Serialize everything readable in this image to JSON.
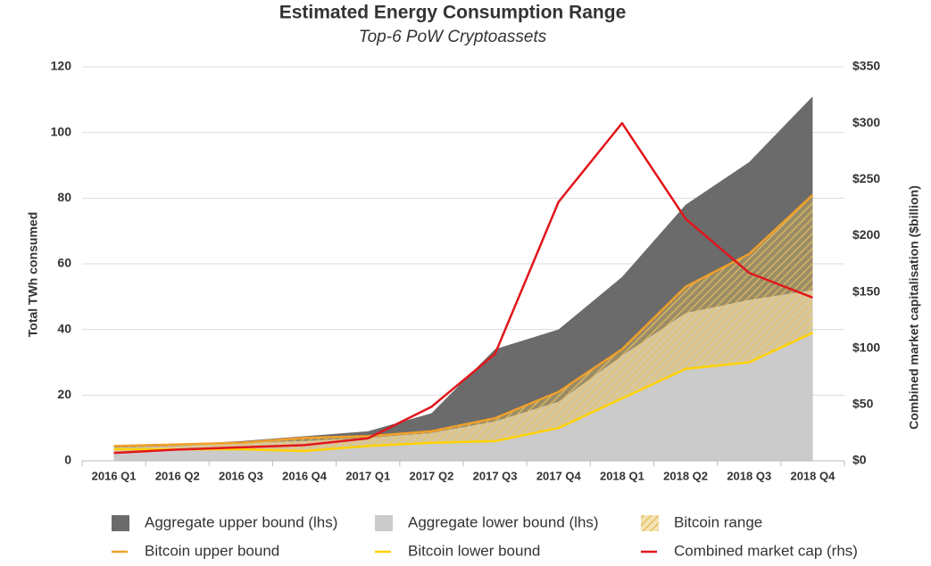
{
  "chart_data": {
    "type": "area-line",
    "title": "Estimated Energy Consumption Range",
    "subtitle": "Top-6 PoW Cryptoassets",
    "y_label": "Total TWh consumed",
    "y2_label": "Combined market capitalisation ($billion)",
    "categories": [
      "2016 Q1",
      "2016 Q2",
      "2016 Q3",
      "2016 Q4",
      "2017 Q1",
      "2017 Q2",
      "2017 Q3",
      "2017 Q4",
      "2018 Q1",
      "2018 Q2",
      "2018 Q3",
      "2018 Q4"
    ],
    "ylim": [
      0,
      120
    ],
    "yticks": [
      0,
      20,
      40,
      60,
      80,
      100,
      120
    ],
    "y2lim": [
      0,
      350
    ],
    "y2ticks": [
      {
        "value": 0,
        "label": "$0"
      },
      {
        "value": 50,
        "label": "$50"
      },
      {
        "value": 100,
        "label": "$100"
      },
      {
        "value": 150,
        "label": "$150"
      },
      {
        "value": 200,
        "label": "$200"
      },
      {
        "value": 250,
        "label": "$250"
      },
      {
        "value": 300,
        "label": "$300"
      },
      {
        "value": 350,
        "label": "$350"
      }
    ],
    "grid": true,
    "series": [
      {
        "name": "Aggregate upper bound (lhs)",
        "type": "area",
        "color": "#6b6b6b",
        "values": [
          4.5,
          5,
          6,
          7.5,
          9,
          14.5,
          34,
          40,
          56,
          78,
          91,
          111
        ]
      },
      {
        "name": "Aggregate lower bound (lhs)",
        "type": "area",
        "color": "#cbcbcb",
        "values": [
          4,
          4.5,
          5.5,
          6,
          7,
          8.5,
          12,
          18,
          32,
          45,
          49,
          52
        ]
      },
      {
        "name": "Bitcoin range",
        "type": "band",
        "color": "#e6c260",
        "between": [
          "Bitcoin upper bound",
          "Bitcoin lower bound"
        ]
      },
      {
        "name": "Bitcoin upper bound",
        "type": "line",
        "color": "#f0a02a",
        "values": [
          4.5,
          5,
          5.5,
          7,
          7.5,
          9,
          13,
          21,
          34,
          53,
          63,
          81
        ]
      },
      {
        "name": "Bitcoin lower bound",
        "type": "line",
        "color": "#ffd200",
        "values": [
          3.5,
          3.5,
          3.5,
          3,
          4.5,
          5.5,
          6,
          10,
          19,
          28,
          30,
          39
        ]
      },
      {
        "name": "Combined market cap (rhs)",
        "type": "line",
        "axis": "y2",
        "color": "#e0161b",
        "values": [
          7,
          10,
          12,
          14,
          20,
          48,
          95,
          230,
          300,
          215,
          167,
          145
        ]
      }
    ]
  }
}
